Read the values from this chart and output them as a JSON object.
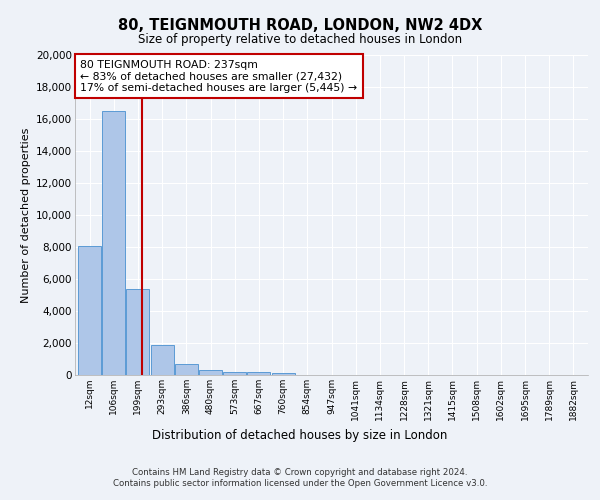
{
  "title_line1": "80, TEIGNMOUTH ROAD, LONDON, NW2 4DX",
  "title_line2": "Size of property relative to detached houses in London",
  "xlabel": "Distribution of detached houses by size in London",
  "ylabel": "Number of detached properties",
  "categories": [
    "12sqm",
    "106sqm",
    "199sqm",
    "293sqm",
    "386sqm",
    "480sqm",
    "573sqm",
    "667sqm",
    "760sqm",
    "854sqm",
    "947sqm",
    "1041sqm",
    "1134sqm",
    "1228sqm",
    "1321sqm",
    "1415sqm",
    "1508sqm",
    "1602sqm",
    "1695sqm",
    "1789sqm",
    "1882sqm"
  ],
  "values": [
    8050,
    16500,
    5350,
    1870,
    670,
    320,
    200,
    160,
    120,
    0,
    0,
    0,
    0,
    0,
    0,
    0,
    0,
    0,
    0,
    0,
    0
  ],
  "bar_color": "#aec6e8",
  "bar_edge_color": "#5b9bd5",
  "vline_x": 2.15,
  "vline_color": "#c00000",
  "annotation_text": "80 TEIGNMOUTH ROAD: 237sqm\n← 83% of detached houses are smaller (27,432)\n17% of semi-detached houses are larger (5,445) →",
  "annotation_box_color": "white",
  "annotation_box_edge": "#c00000",
  "ylim": [
    0,
    20000
  ],
  "yticks": [
    0,
    2000,
    4000,
    6000,
    8000,
    10000,
    12000,
    14000,
    16000,
    18000,
    20000
  ],
  "footer_line1": "Contains HM Land Registry data © Crown copyright and database right 2024.",
  "footer_line2": "Contains public sector information licensed under the Open Government Licence v3.0.",
  "background_color": "#eef2f8",
  "plot_bg_color": "#eef2f8"
}
